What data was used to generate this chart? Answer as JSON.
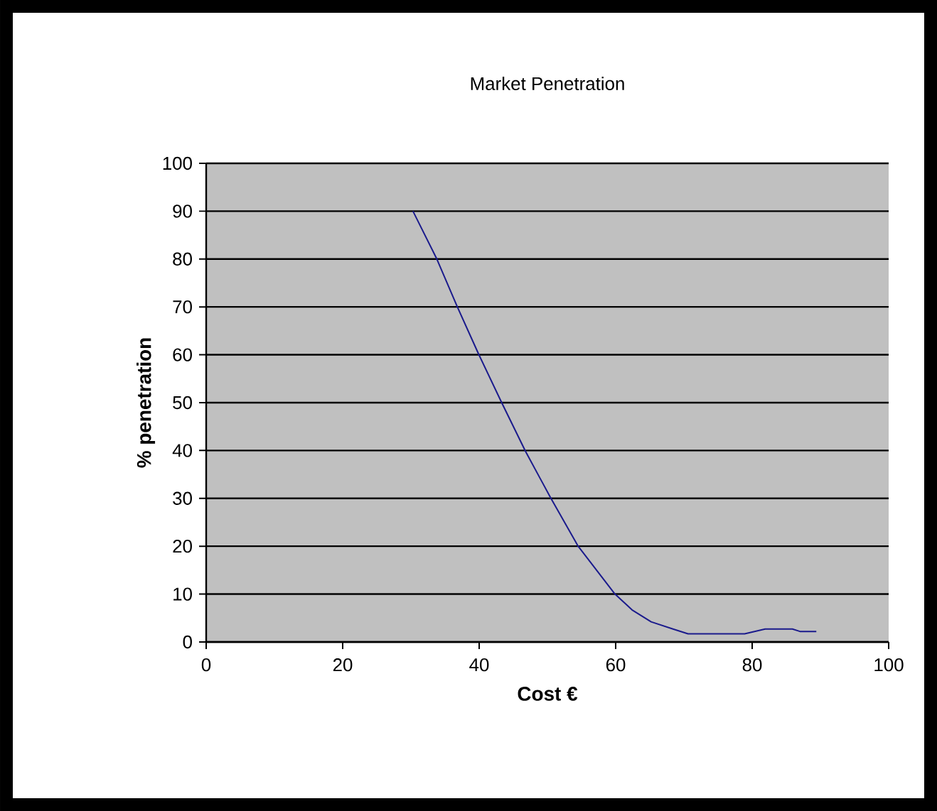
{
  "chart_data": {
    "type": "line",
    "title": "Market Penetration",
    "xlabel": "Cost €",
    "ylabel": "% penetration",
    "x": [
      30.3,
      33.8,
      36.8,
      39.9,
      43.3,
      46.8,
      50.4,
      54.5,
      59.9,
      62.4,
      65.2,
      68.4,
      70.6,
      78.9,
      81.9,
      85.9,
      87,
      89.4
    ],
    "series": [
      {
        "color": "#1a1a8c",
        "values": [
          90,
          80,
          70,
          60.2,
          50,
          39.8,
          30.3,
          20,
          10,
          6.7,
          4.2,
          2.7,
          1.7,
          1.7,
          2.7,
          2.7,
          2.2,
          2.2
        ]
      }
    ],
    "xlim": [
      0,
      100
    ],
    "xticks": [
      0,
      20,
      40,
      60,
      80,
      100
    ],
    "ylim": [
      0,
      100
    ],
    "yticks": [
      0,
      10,
      20,
      30,
      40,
      50,
      60,
      70,
      80,
      90,
      100
    ],
    "grid": "y",
    "marker": "none",
    "line_style": "solid"
  }
}
